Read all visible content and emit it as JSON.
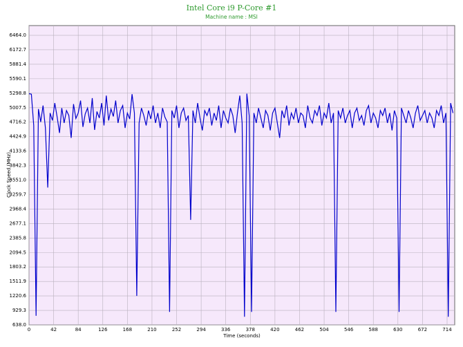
{
  "chart_data": {
    "type": "line",
    "title": "Intel Core i9 P-Core #1",
    "subtitle": "Machine name : MSI",
    "xlabel": "Time (seconds)",
    "ylabel": "Clock Speed (MHz)",
    "xlim": [
      0,
      727
    ],
    "ylim": [
      638,
      6659
    ],
    "xticks": [
      0,
      42,
      84,
      126,
      168,
      210,
      252,
      294,
      336,
      378,
      420,
      462,
      504,
      546,
      588,
      630,
      672,
      714
    ],
    "yticks": [
      {
        "value": 638,
        "label": "638.0"
      },
      929.3,
      1220.6,
      1511.9,
      1803.2,
      2094.5,
      2385.8,
      2677.1,
      2968.4,
      3259.7,
      {
        "value": 3551,
        "label": "3551.0"
      },
      3842.3,
      4133.6,
      4424.9,
      4716.2,
      5007.5,
      5298.8,
      5590.1,
      5881.4,
      6172.7,
      {
        "value": 6464,
        "label": "6464.0"
      }
    ],
    "grid": true,
    "x": [
      0,
      4,
      8,
      12,
      16,
      20,
      24,
      28,
      32,
      36,
      40,
      44,
      48,
      52,
      56,
      60,
      64,
      68,
      72,
      76,
      80,
      84,
      88,
      92,
      96,
      100,
      104,
      108,
      112,
      116,
      120,
      124,
      128,
      132,
      136,
      140,
      144,
      148,
      152,
      156,
      160,
      164,
      168,
      172,
      176,
      180,
      184,
      188,
      192,
      196,
      200,
      204,
      208,
      212,
      216,
      220,
      224,
      228,
      232,
      236,
      240,
      244,
      248,
      252,
      256,
      260,
      264,
      268,
      272,
      276,
      280,
      284,
      288,
      292,
      296,
      300,
      304,
      308,
      312,
      316,
      320,
      324,
      328,
      332,
      336,
      340,
      344,
      348,
      352,
      356,
      360,
      364,
      368,
      372,
      376,
      380,
      384,
      388,
      392,
      396,
      400,
      404,
      408,
      412,
      416,
      420,
      424,
      428,
      432,
      436,
      440,
      444,
      448,
      452,
      456,
      460,
      464,
      468,
      472,
      476,
      480,
      484,
      488,
      492,
      496,
      500,
      504,
      508,
      512,
      516,
      520,
      524,
      528,
      532,
      536,
      540,
      544,
      548,
      552,
      556,
      560,
      564,
      568,
      572,
      576,
      580,
      584,
      588,
      592,
      596,
      600,
      604,
      608,
      612,
      616,
      620,
      624,
      628,
      632,
      636,
      640,
      644,
      648,
      652,
      656,
      660,
      664,
      668,
      672,
      676,
      680,
      684,
      688,
      692,
      696,
      700,
      704,
      708,
      712,
      716,
      720,
      724
    ],
    "series": [
      {
        "name": "Clock Speed",
        "color": "#0000cc",
        "values": [
          5290,
          5280,
          4650,
          820,
          4980,
          4720,
          5050,
          4600,
          3400,
          4900,
          4750,
          5100,
          4820,
          4500,
          5000,
          4700,
          4950,
          4850,
          4400,
          5080,
          4790,
          4900,
          5150,
          4620,
          4880,
          5000,
          4700,
          5200,
          4560,
          4930,
          4800,
          5100,
          4650,
          5250,
          4750,
          4980,
          4830,
          5150,
          4700,
          4950,
          5050,
          4600,
          4900,
          4780,
          5280,
          4900,
          1220,
          4700,
          5000,
          4850,
          4650,
          4950,
          4780,
          5050,
          4700,
          4900,
          4600,
          5000,
          4820,
          4720,
          900,
          4950,
          4800,
          5050,
          4600,
          4900,
          5000,
          4750,
          4850,
          2750,
          4950,
          4700,
          5100,
          4800,
          4550,
          4950,
          4850,
          5000,
          4650,
          4900,
          4750,
          5050,
          4600,
          4950,
          4800,
          4700,
          5000,
          4850,
          4500,
          4900,
          5250,
          4700,
          800,
          5290,
          4850,
          900,
          4900,
          4700,
          5000,
          4800,
          4600,
          4950,
          4850,
          4550,
          4900,
          5000,
          4700,
          4400,
          4950,
          4800,
          5050,
          4650,
          4900,
          4780,
          5000,
          4700,
          4900,
          4850,
          4600,
          5050,
          4800,
          4700,
          4950,
          4850,
          5050,
          4650,
          4900,
          4800,
          5100,
          4700,
          4900,
          900,
          4950,
          4800,
          5000,
          4700,
          4850,
          4950,
          4600,
          4900,
          5000,
          4750,
          4850,
          4650,
          4950,
          5050,
          4700,
          4900,
          4800,
          4600,
          4950,
          4850,
          5000,
          4700,
          4900,
          4550,
          4950,
          4800,
          900,
          5000,
          4850,
          4700,
          4950,
          4800,
          4600,
          4900,
          5050,
          4750,
          4850,
          4950,
          4700,
          4900,
          4800,
          4600,
          4950,
          4850,
          5050,
          4700,
          4900,
          800,
          5100,
          4900
        ]
      }
    ]
  }
}
